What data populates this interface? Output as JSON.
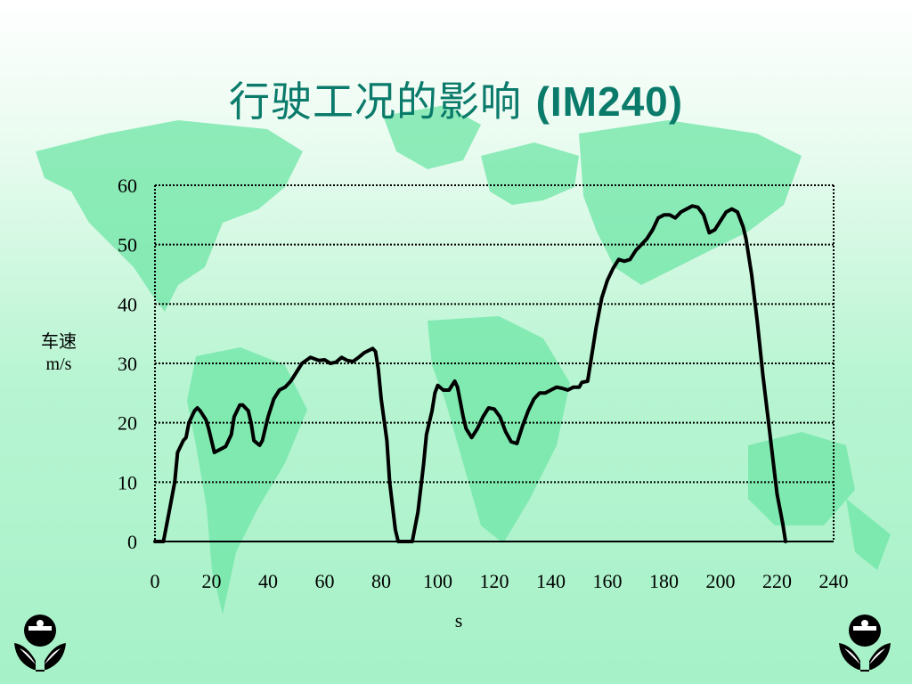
{
  "title": {
    "cn": "行驶工况的影响",
    "latin": "(IM240)"
  },
  "colors": {
    "title": "#0a7a6a",
    "map": "#6ee6a6",
    "line": "#000000",
    "grid": "#000000"
  },
  "chart_data": {
    "type": "line",
    "title": "行驶工况的影响 (IM240)",
    "xlabel": "s",
    "ylabel": "车速 m/s",
    "ylabel_parts": [
      "车速",
      "m/s"
    ],
    "xlim": [
      0,
      240
    ],
    "ylim": [
      0,
      60
    ],
    "x_ticks": [
      0,
      20,
      40,
      60,
      80,
      100,
      120,
      140,
      160,
      180,
      200,
      220,
      240
    ],
    "y_ticks": [
      0,
      10,
      20,
      30,
      40,
      50,
      60
    ],
    "grid": "horizontal-dotted",
    "series": [
      {
        "points": [
          [
            0,
            0
          ],
          [
            3,
            0
          ],
          [
            5,
            5
          ],
          [
            7,
            10
          ],
          [
            8,
            15
          ],
          [
            10,
            17
          ],
          [
            11,
            17.5
          ],
          [
            12,
            20
          ],
          [
            14,
            22
          ],
          [
            15,
            22.5
          ],
          [
            16,
            22
          ],
          [
            18,
            20.5
          ],
          [
            19,
            19
          ],
          [
            20,
            17
          ],
          [
            21,
            15
          ],
          [
            23,
            15.5
          ],
          [
            25,
            16
          ],
          [
            27,
            18
          ],
          [
            28,
            21
          ],
          [
            30,
            23
          ],
          [
            31,
            23
          ],
          [
            33,
            22
          ],
          [
            34,
            20
          ],
          [
            35,
            17
          ],
          [
            37,
            16.2
          ],
          [
            38,
            17
          ],
          [
            40,
            21
          ],
          [
            42,
            24
          ],
          [
            44,
            25.5
          ],
          [
            46,
            26
          ],
          [
            48,
            27
          ],
          [
            50,
            28.5
          ],
          [
            52,
            30
          ],
          [
            55,
            31
          ],
          [
            58,
            30.5
          ],
          [
            60,
            30.6
          ],
          [
            62,
            30
          ],
          [
            64,
            30.2
          ],
          [
            66,
            31
          ],
          [
            68,
            30.5
          ],
          [
            70,
            30.3
          ],
          [
            72,
            31
          ],
          [
            74,
            31.8
          ],
          [
            77,
            32.5
          ],
          [
            78,
            32
          ],
          [
            79,
            29
          ],
          [
            80,
            24
          ],
          [
            82,
            17
          ],
          [
            83,
            10
          ],
          [
            84,
            6
          ],
          [
            85,
            2
          ],
          [
            86,
            0
          ],
          [
            88,
            0
          ],
          [
            91,
            0
          ],
          [
            93,
            5
          ],
          [
            95,
            13
          ],
          [
            96,
            18
          ],
          [
            98,
            22
          ],
          [
            99,
            25
          ],
          [
            100,
            26.3
          ],
          [
            102,
            25.5
          ],
          [
            104,
            25.5
          ],
          [
            106,
            27
          ],
          [
            107,
            26
          ],
          [
            109,
            21
          ],
          [
            110,
            19
          ],
          [
            112,
            17.5
          ],
          [
            114,
            19
          ],
          [
            116,
            21
          ],
          [
            118,
            22.5
          ],
          [
            120,
            22.3
          ],
          [
            122,
            21
          ],
          [
            124,
            18.5
          ],
          [
            126,
            16.8
          ],
          [
            128,
            16.5
          ],
          [
            130,
            19.5
          ],
          [
            132,
            22
          ],
          [
            134,
            24
          ],
          [
            136,
            25
          ],
          [
            138,
            25
          ],
          [
            140,
            25.5
          ],
          [
            142,
            26
          ],
          [
            144,
            25.8
          ],
          [
            146,
            25.5
          ],
          [
            148,
            26
          ],
          [
            150,
            26
          ],
          [
            151,
            26.8
          ],
          [
            153,
            27
          ],
          [
            154,
            30
          ],
          [
            156,
            36
          ],
          [
            158,
            41
          ],
          [
            160,
            44
          ],
          [
            162,
            46
          ],
          [
            164,
            47.5
          ],
          [
            166,
            47.2
          ],
          [
            168,
            47.5
          ],
          [
            170,
            49
          ],
          [
            172,
            50
          ],
          [
            174,
            51
          ],
          [
            176,
            52.5
          ],
          [
            178,
            54.5
          ],
          [
            180,
            55
          ],
          [
            182,
            55
          ],
          [
            184,
            54.5
          ],
          [
            186,
            55.5
          ],
          [
            188,
            56
          ],
          [
            190,
            56.5
          ],
          [
            192,
            56.3
          ],
          [
            194,
            55
          ],
          [
            196,
            52
          ],
          [
            198,
            52.5
          ],
          [
            200,
            54
          ],
          [
            202,
            55.5
          ],
          [
            204,
            56
          ],
          [
            206,
            55.5
          ],
          [
            208,
            53
          ],
          [
            209,
            51
          ],
          [
            211,
            45
          ],
          [
            213,
            37
          ],
          [
            215,
            28
          ],
          [
            217,
            20
          ],
          [
            219,
            12
          ],
          [
            220,
            8
          ],
          [
            222,
            3
          ],
          [
            223,
            0
          ]
        ]
      }
    ]
  }
}
